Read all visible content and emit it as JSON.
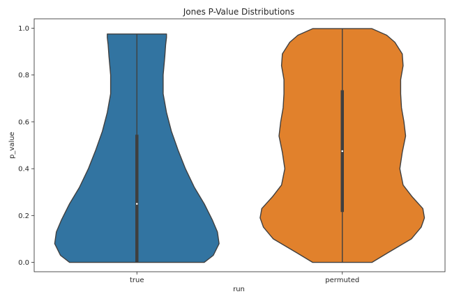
{
  "chart_data": {
    "type": "violin",
    "title": "Jones P-Value Distributions",
    "xlabel": "run",
    "ylabel": "p_value",
    "ylim": [
      -0.04,
      1.04
    ],
    "yticks": [
      0.0,
      0.2,
      0.4,
      0.6,
      0.8,
      1.0
    ],
    "ytick_labels": [
      "0.0",
      "0.2",
      "0.4",
      "0.6",
      "0.8",
      "1.0"
    ],
    "grid": false,
    "categories": [
      "true",
      "permuted"
    ],
    "series": [
      {
        "category": "true",
        "color": "#3274a1",
        "min": 0.0,
        "max": 0.975,
        "q1": 0.0,
        "median": 0.25,
        "q3": 0.545,
        "profile": [
          [
            0.0,
            0.82
          ],
          [
            0.03,
            0.93
          ],
          [
            0.08,
            1.0
          ],
          [
            0.13,
            0.98
          ],
          [
            0.18,
            0.92
          ],
          [
            0.25,
            0.82
          ],
          [
            0.32,
            0.7
          ],
          [
            0.4,
            0.59
          ],
          [
            0.48,
            0.5
          ],
          [
            0.56,
            0.42
          ],
          [
            0.64,
            0.36
          ],
          [
            0.72,
            0.32
          ],
          [
            0.8,
            0.32
          ],
          [
            0.88,
            0.34
          ],
          [
            0.93,
            0.35
          ],
          [
            0.96,
            0.36
          ],
          [
            0.975,
            0.36
          ]
        ]
      },
      {
        "category": "permuted",
        "color": "#e1812c",
        "min": 0.0,
        "max": 0.998,
        "q1": 0.215,
        "median": 0.475,
        "q3": 0.735,
        "profile": [
          [
            0.0,
            0.36
          ],
          [
            0.04,
            0.55
          ],
          [
            0.1,
            0.84
          ],
          [
            0.15,
            0.96
          ],
          [
            0.19,
            1.0
          ],
          [
            0.23,
            0.98
          ],
          [
            0.28,
            0.85
          ],
          [
            0.33,
            0.74
          ],
          [
            0.4,
            0.7
          ],
          [
            0.47,
            0.73
          ],
          [
            0.54,
            0.77
          ],
          [
            0.6,
            0.75
          ],
          [
            0.66,
            0.72
          ],
          [
            0.72,
            0.71
          ],
          [
            0.78,
            0.71
          ],
          [
            0.84,
            0.74
          ],
          [
            0.89,
            0.73
          ],
          [
            0.94,
            0.64
          ],
          [
            0.97,
            0.54
          ],
          [
            0.998,
            0.36
          ]
        ]
      }
    ]
  }
}
